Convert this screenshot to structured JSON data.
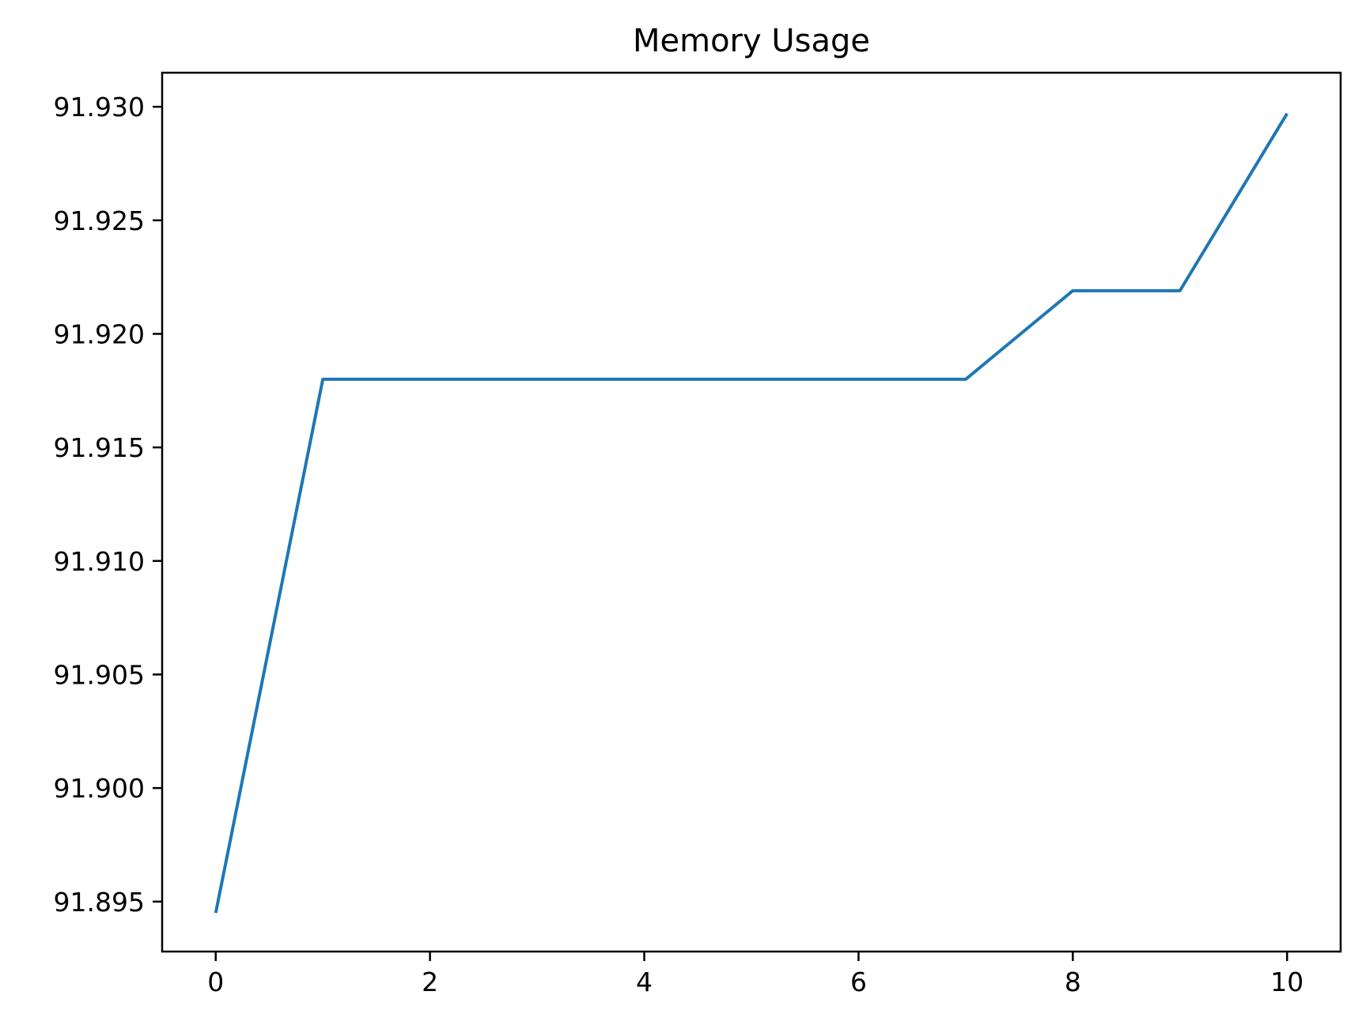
{
  "chart_data": {
    "type": "line",
    "title": "Memory Usage",
    "xlabel": "",
    "ylabel": "",
    "xlim": [
      -0.5,
      10.5
    ],
    "ylim": [
      91.8928,
      91.9315
    ],
    "x_ticks": [
      0,
      2,
      4,
      6,
      8,
      10
    ],
    "x_tick_labels": [
      "0",
      "2",
      "4",
      "6",
      "8",
      "10"
    ],
    "y_ticks": [
      91.895,
      91.9,
      91.905,
      91.91,
      91.915,
      91.92,
      91.925,
      91.93
    ],
    "y_tick_labels": [
      "91.895",
      "91.900",
      "91.905",
      "91.910",
      "91.915",
      "91.920",
      "91.925",
      "91.930"
    ],
    "grid": false,
    "legend": "none",
    "series": [
      {
        "color": "#1f77b4",
        "x": [
          0,
          1,
          2,
          3,
          4,
          5,
          6,
          7,
          8,
          9,
          10
        ],
        "y": [
          91.8945,
          91.918,
          91.918,
          91.918,
          91.918,
          91.918,
          91.918,
          91.918,
          91.9219,
          91.9219,
          91.9297
        ]
      }
    ]
  }
}
